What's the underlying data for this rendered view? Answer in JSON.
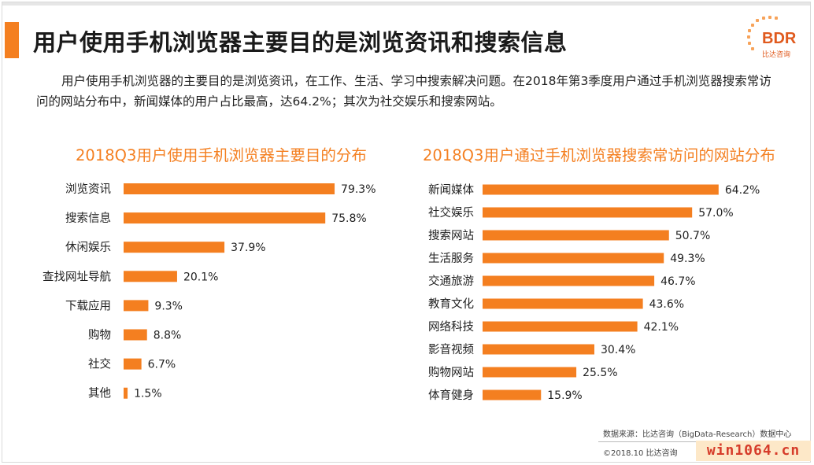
{
  "header": {
    "title": "用户使用手机浏览器主要目的是浏览资讯和搜索信息",
    "logo_text": "BDR",
    "logo_subtext": "比达咨询"
  },
  "intro": "用户使用手机浏览器的主要目的是浏览资讯，在工作、生活、学习中搜索解决问题。在2018年第3季度用户通过手机浏览器搜索常访问的网站分布中，新闻媒体的用户占比最高，达64.2%；其次为社交娱乐和搜索网站。",
  "colors": {
    "accent": "#f47f20",
    "bar": "#f47f20"
  },
  "chart_data": [
    {
      "type": "bar",
      "orientation": "horizontal",
      "title": "2018Q3用户使用手机浏览器主要目的分布",
      "categories": [
        "浏览资讯",
        "搜索信息",
        "休闲娱乐",
        "查找网址导航",
        "下载应用",
        "购物",
        "社交",
        "其他"
      ],
      "values": [
        79.3,
        75.8,
        37.9,
        20.1,
        9.3,
        8.8,
        6.7,
        1.5
      ],
      "labels": [
        "79.3%",
        "75.8%",
        "37.9%",
        "20.1%",
        "9.3%",
        "8.8%",
        "6.7%",
        "1.5%"
      ],
      "grid": false
    },
    {
      "type": "bar",
      "orientation": "horizontal",
      "title": "2018Q3用户通过手机浏览器搜索常访问的网站分布",
      "categories": [
        "新闻媒体",
        "社交娱乐",
        "搜索网站",
        "生活服务",
        "交通旅游",
        "教育文化",
        "网络科技",
        "影音视频",
        "购物网站",
        "体育健身"
      ],
      "values": [
        64.2,
        57.0,
        50.7,
        49.3,
        46.7,
        43.6,
        42.1,
        30.4,
        25.5,
        15.9
      ],
      "labels": [
        "64.2%",
        "57.0%",
        "50.7%",
        "49.3%",
        "46.7%",
        "43.6%",
        "42.1%",
        "30.4%",
        "25.5%",
        "15.9%"
      ],
      "grid": false
    }
  ],
  "footer": {
    "source": "数据来源：比达咨询（BigData-Research）数据中心",
    "copyright": "©2018.10 比达咨询",
    "watermark": "win1064.cn"
  }
}
